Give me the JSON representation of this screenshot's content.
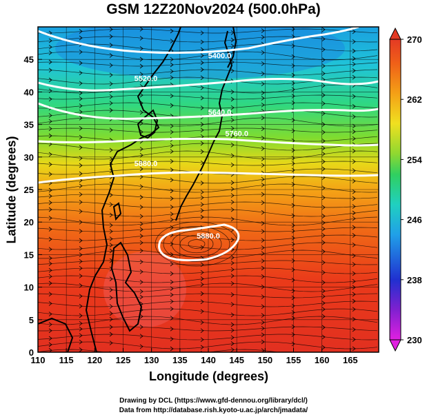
{
  "title": "GSM 12Z20Nov2024 (500.0hPa)",
  "credits": [
    "Drawing by DCL (https://www.gfd-dennou.org/library/dcl/)",
    "Data from http://database.rish.kyoto-u.ac.jp/arch/jmadata/"
  ],
  "chart_data": {
    "type": "heatmap",
    "xlabel": "Longitude (degrees)",
    "ylabel": "Latitude  (degrees)",
    "xlim": [
      110,
      170
    ],
    "ylim": [
      0,
      50
    ],
    "x_ticks": [
      110,
      115,
      120,
      125,
      130,
      135,
      140,
      145,
      150,
      155,
      160,
      165
    ],
    "y_ticks": [
      0,
      5,
      10,
      15,
      20,
      25,
      30,
      35,
      40,
      45
    ],
    "grid": true,
    "colorbar": {
      "min": 230,
      "max": 270,
      "ticks": [
        230,
        238,
        246,
        254,
        262,
        270
      ]
    },
    "contour_labels": [
      {
        "text": "5400.0",
        "lon": 142,
        "lat": 45.2
      },
      {
        "text": "5520.0",
        "lon": 129,
        "lat": 41.7
      },
      {
        "text": "5640.0",
        "lon": 142,
        "lat": 36.5
      },
      {
        "text": "5760.0",
        "lon": 145,
        "lat": 33.2
      },
      {
        "text": "5880.0",
        "lon": 129,
        "lat": 28.6
      },
      {
        "text": "5880.0",
        "lon": 140,
        "lat": 17.5
      }
    ]
  }
}
